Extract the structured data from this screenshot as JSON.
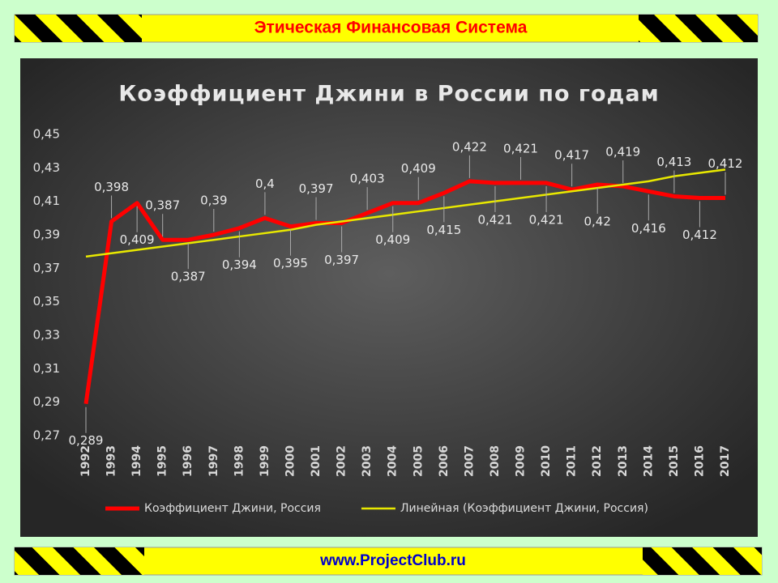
{
  "banner": {
    "title": "Этическая Финансовая Система",
    "footer": "www.ProjectClub.ru"
  },
  "chart_data": {
    "type": "line",
    "title": "Коэффициент Джини в России по годам",
    "categories": [
      "1992",
      "1993",
      "1994",
      "1995",
      "1996",
      "1997",
      "1998",
      "1999",
      "2000",
      "2001",
      "2002",
      "2003",
      "2004",
      "2005",
      "2006",
      "2007",
      "2008",
      "2009",
      "2010",
      "2011",
      "2012",
      "2013",
      "2014",
      "2015",
      "2016",
      "2017"
    ],
    "series": [
      {
        "name": "Коэффициент Джини, Россия",
        "color": "#ff0000",
        "values": [
          0.289,
          0.398,
          0.409,
          0.387,
          0.387,
          0.39,
          0.394,
          0.4,
          0.395,
          0.397,
          0.397,
          0.403,
          0.409,
          0.409,
          0.415,
          0.422,
          0.421,
          0.421,
          0.421,
          0.417,
          0.42,
          0.419,
          0.416,
          0.413,
          0.412,
          0.412
        ],
        "value_labels": [
          "0,289",
          "0,398",
          "0,409",
          "0,387",
          "0,387",
          "0,39",
          "0,394",
          "0,4",
          "0,395",
          "0,397",
          "0,397",
          "0,403",
          "0,409",
          "0,409",
          "0,415",
          "0,422",
          "0,421",
          "0,421",
          "0,421",
          "0,417",
          "0,42",
          "0,419",
          "0,416",
          "0,413",
          "0,412",
          "0,412"
        ]
      },
      {
        "name": "Линейная (Коэффициент Джини, Россия)",
        "color": "#e8e800",
        "values": [
          0.377,
          0.379,
          0.381,
          0.383,
          0.385,
          0.387,
          0.389,
          0.391,
          0.393,
          0.396,
          0.398,
          0.4,
          0.402,
          0.404,
          0.406,
          0.408,
          0.41,
          0.412,
          0.414,
          0.416,
          0.418,
          0.42,
          0.422,
          0.425,
          0.427,
          0.429
        ]
      }
    ],
    "ylim": [
      0.27,
      0.45
    ],
    "yticks": [
      {
        "value": 0.27,
        "label": "0,27"
      },
      {
        "value": 0.29,
        "label": "0,29"
      },
      {
        "value": 0.31,
        "label": "0,31"
      },
      {
        "value": 0.33,
        "label": "0,33"
      },
      {
        "value": 0.35,
        "label": "0,35"
      },
      {
        "value": 0.37,
        "label": "0,37"
      },
      {
        "value": 0.39,
        "label": "0,39"
      },
      {
        "value": 0.41,
        "label": "0,41"
      },
      {
        "value": 0.43,
        "label": "0,43"
      },
      {
        "value": 0.45,
        "label": "0,45"
      }
    ],
    "grid": false,
    "legend": "bottom"
  }
}
